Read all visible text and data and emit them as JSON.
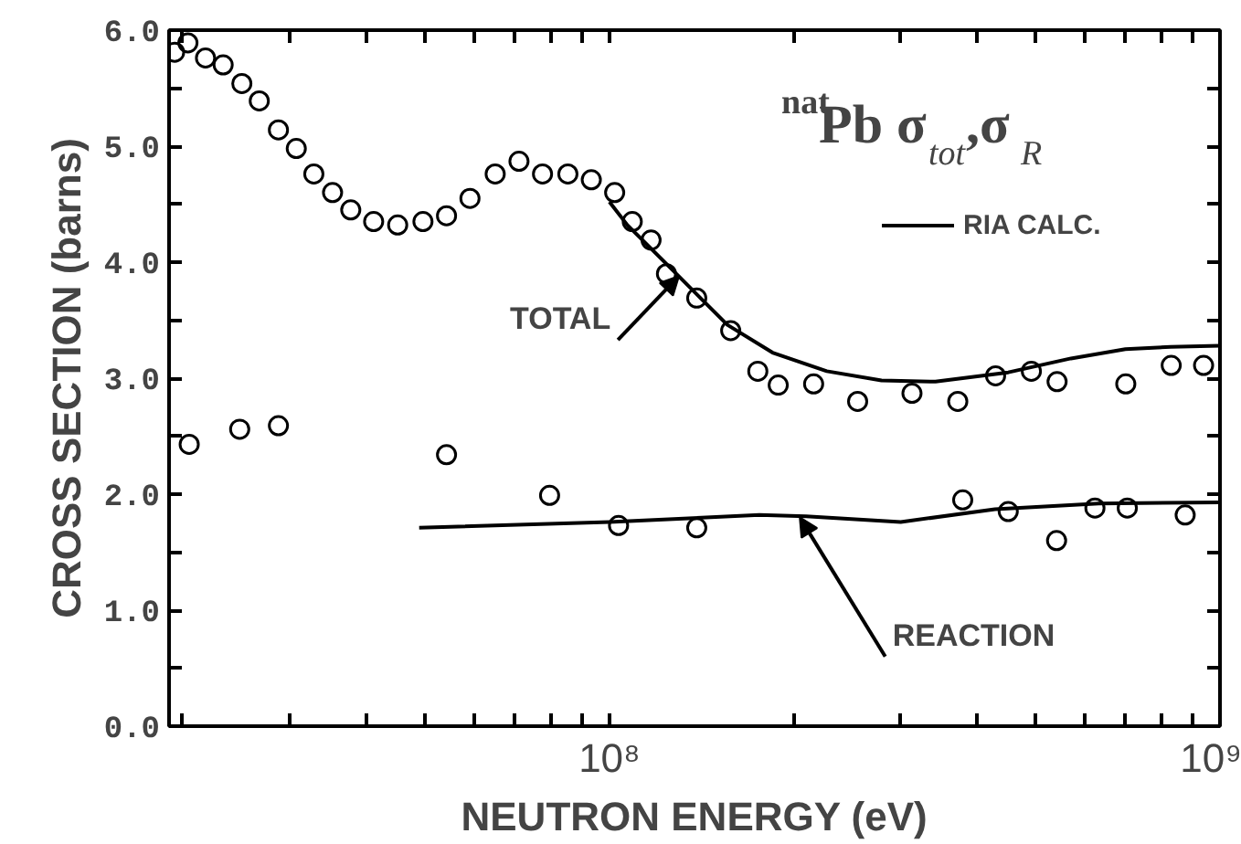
{
  "chart_data": {
    "type": "scatter",
    "title": "$^{nat}$Pb σ$_{tot}$,σ$_{R}$",
    "xlabel": "NEUTRON ENERGY (eV)",
    "ylabel": "CROSS SECTION (barns)",
    "log": "x",
    "grid": false,
    "legend": "top right",
    "line_style": "solid",
    "xlim": [
      19000000,
      1000000000
    ],
    "ylim": [
      0,
      6.0
    ],
    "xticks": [
      {
        "value": 20000000,
        "label": null
      },
      {
        "value": 30000000,
        "label": null
      },
      {
        "value": 40000000,
        "label": null
      },
      {
        "value": 50000000,
        "label": null
      },
      {
        "value": 60000000,
        "label": null
      },
      {
        "value": 70000000,
        "label": null
      },
      {
        "value": 80000000,
        "label": null
      },
      {
        "value": 90000000,
        "label": null
      },
      {
        "value": 100000000,
        "label": "10⁸"
      },
      {
        "value": 200000000,
        "label": null
      },
      {
        "value": 300000000,
        "label": null
      },
      {
        "value": 400000000,
        "label": null
      },
      {
        "value": 500000000,
        "label": null
      },
      {
        "value": 600000000,
        "label": null
      },
      {
        "value": 700000000,
        "label": null
      },
      {
        "value": 800000000,
        "label": null
      },
      {
        "value": 900000000,
        "label": null
      },
      {
        "value": 1000000000,
        "label": "10⁹"
      }
    ],
    "yticks": [
      {
        "value": 0,
        "label": "0.0"
      },
      {
        "value": 0.5,
        "label": null
      },
      {
        "value": 1,
        "label": "1.0"
      },
      {
        "value": 1.5,
        "label": null
      },
      {
        "value": 2,
        "label": "2.0"
      },
      {
        "value": 2.5,
        "label": null
      },
      {
        "value": 3,
        "label": "3.0"
      },
      {
        "value": 3.5,
        "label": null
      },
      {
        "value": 4,
        "label": "4.0"
      },
      {
        "value": 4.5,
        "label": null
      },
      {
        "value": 5,
        "label": "5.0"
      },
      {
        "value": 5.5,
        "label": null
      },
      {
        "value": 6,
        "label": "6.0"
      }
    ],
    "series": [
      {
        "name": "RIA CALC.",
        "type": "line",
        "color": "#000000",
        "x": [
          100000000,
          107000000,
          127000000,
          141000000,
          156000000,
          185000000,
          227000000,
          279000000,
          342000000,
          450000000,
          570000000,
          700000000,
          830000000,
          1000000000
        ],
        "values": [
          4.52,
          4.32,
          3.93,
          3.69,
          3.46,
          3.22,
          3.06,
          2.98,
          2.97,
          3.05,
          3.17,
          3.25,
          3.27,
          3.28
        ]
      },
      {
        "type": "line",
        "color": "#000000",
        "x": [
          48800000,
          100000000,
          176000000,
          210000000,
          300000000,
          428000000,
          633000000,
          1000000000
        ],
        "values": [
          1.71,
          1.76,
          1.82,
          1.81,
          1.76,
          1.87,
          1.92,
          1.93
        ]
      },
      {
        "marker": "circle",
        "color": "#000000",
        "x": [
          19400000,
          20400000,
          21800000,
          23300000,
          25000000,
          26700000,
          28700000,
          30700000,
          32800000,
          35200000,
          37700000,
          41100000,
          45000000,
          49500000,
          54100000,
          59100000,
          65000000,
          71100000,
          77700000,
          85500000,
          93400000,
          102000000,
          109000000,
          117000000,
          124000000,
          139000000,
          158000000,
          175000000,
          189000000,
          216000000,
          255000000,
          313000000,
          372000000,
          429000000,
          491000000,
          541000000,
          701000000,
          832000000,
          940000000
        ],
        "values": [
          5.81,
          5.89,
          5.76,
          5.7,
          5.54,
          5.39,
          5.14,
          4.98,
          4.76,
          4.6,
          4.45,
          4.35,
          4.32,
          4.35,
          4.4,
          4.55,
          4.76,
          4.87,
          4.76,
          4.76,
          4.71,
          4.6,
          4.35,
          4.19,
          3.9,
          3.69,
          3.41,
          3.06,
          2.94,
          2.95,
          2.8,
          2.87,
          2.8,
          3.02,
          3.06,
          2.97,
          2.95,
          3.11,
          3.11
        ]
      },
      {
        "marker": "circle",
        "color": "#000000",
        "x": [
          20500000,
          24800000,
          28700000,
          54100000,
          79800000,
          103500000,
          139000000,
          379000000,
          450000000,
          540000000,
          624000000,
          705000000,
          877000000
        ],
        "values": [
          2.43,
          2.56,
          2.59,
          2.34,
          1.99,
          1.73,
          1.71,
          1.95,
          1.85,
          1.6,
          1.88,
          1.88,
          1.82
        ]
      }
    ],
    "annotations": [
      {
        "text": "TOTAL",
        "x": 130000000,
        "y": 3.88
      },
      {
        "text": "REACTION",
        "x": 205000000,
        "y": 1.8
      }
    ]
  }
}
